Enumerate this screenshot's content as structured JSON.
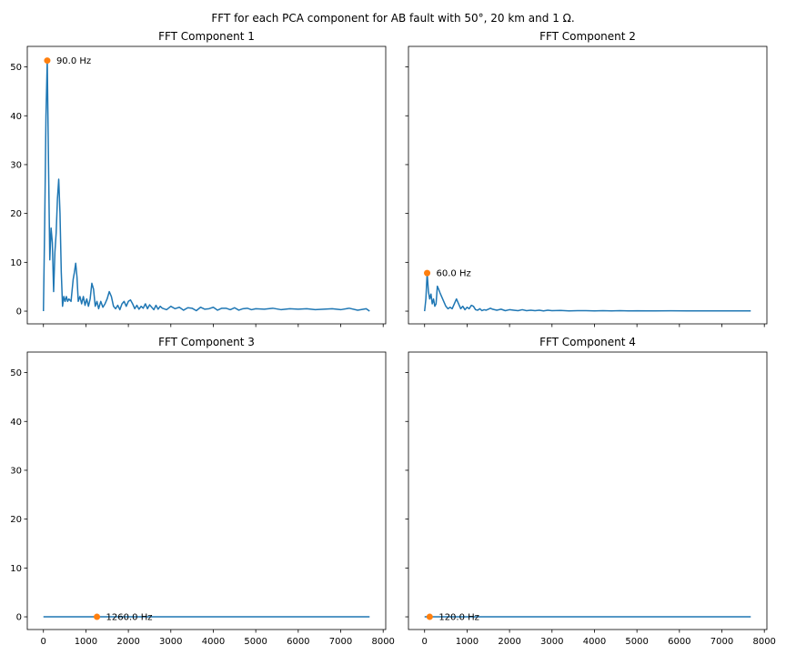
{
  "figure": {
    "suptitle": "FFT for each PCA component for AB fault with 50°, 20 km and 1 Ω."
  },
  "colors": {
    "line": "#1f77b4",
    "peak": "#ff7f0e",
    "axes": "#000000",
    "background": "#ffffff"
  },
  "chart_data": [
    {
      "type": "line",
      "title": "FFT Component 1",
      "xlabel": "",
      "ylabel": "",
      "xlim": [
        -380,
        8060
      ],
      "ylim": [
        -2.6,
        54.2
      ],
      "xticks": [
        0,
        1000,
        2000,
        3000,
        4000,
        5000,
        6000,
        7000,
        8000
      ],
      "yticks": [
        0,
        10,
        20,
        30,
        40,
        50
      ],
      "show_xtick_labels": false,
      "show_ytick_labels": true,
      "grid": false,
      "series": [
        {
          "x": [
            0,
            30,
            60,
            90,
            120,
            150,
            180,
            210,
            240,
            270,
            300,
            330,
            360,
            390,
            420,
            450,
            480,
            510,
            540,
            570,
            600,
            650,
            700,
            730,
            760,
            790,
            820,
            860,
            900,
            940,
            980,
            1020,
            1060,
            1100,
            1140,
            1180,
            1220,
            1260,
            1300,
            1350,
            1400,
            1450,
            1500,
            1550,
            1600,
            1650,
            1700,
            1750,
            1800,
            1850,
            1900,
            1950,
            2000,
            2050,
            2100,
            2150,
            2200,
            2250,
            2300,
            2350,
            2400,
            2450,
            2500,
            2550,
            2600,
            2650,
            2700,
            2750,
            2800,
            2900,
            3000,
            3100,
            3200,
            3300,
            3400,
            3500,
            3600,
            3700,
            3800,
            3900,
            4000,
            4100,
            4200,
            4300,
            4400,
            4500,
            4600,
            4700,
            4800,
            4900,
            5000,
            5200,
            5400,
            5600,
            5800,
            6000,
            6200,
            6400,
            6600,
            6800,
            7000,
            7200,
            7400,
            7600,
            7680
          ],
          "y": [
            0,
            18,
            40,
            51.3,
            30,
            10.5,
            17,
            14,
            4,
            12,
            16,
            23,
            27,
            20,
            8,
            1,
            3,
            2,
            3,
            2,
            2.5,
            2,
            6.5,
            8,
            9.8,
            7,
            2,
            3,
            1.5,
            3,
            1.2,
            2.5,
            1,
            2.5,
            5.7,
            4.5,
            1,
            2,
            0.5,
            2,
            0.8,
            1.5,
            2.5,
            4,
            3,
            1,
            0.5,
            1.2,
            0.3,
            1.5,
            2,
            1,
            2,
            2.3,
            1.5,
            0.5,
            1.2,
            0.4,
            1,
            0.6,
            1.5,
            0.5,
            1.3,
            0.8,
            0.3,
            1.2,
            0.4,
            1.0,
            0.6,
            0.3,
            1.0,
            0.5,
            0.8,
            0.2,
            0.7,
            0.6,
            0.1,
            0.8,
            0.4,
            0.5,
            0.8,
            0.2,
            0.6,
            0.6,
            0.3,
            0.7,
            0.2,
            0.5,
            0.6,
            0.3,
            0.5,
            0.4,
            0.6,
            0.3,
            0.5,
            0.4,
            0.5,
            0.3,
            0.4,
            0.5,
            0.3,
            0.6,
            0.2,
            0.5,
            0
          ]
        }
      ],
      "peak": {
        "x": 90,
        "y": 51.3,
        "label": "90.0 Hz"
      }
    },
    {
      "type": "line",
      "title": "FFT Component 2",
      "xlabel": "",
      "ylabel": "",
      "xlim": [
        -380,
        8060
      ],
      "ylim": [
        -2.6,
        54.2
      ],
      "xticks": [
        0,
        1000,
        2000,
        3000,
        4000,
        5000,
        6000,
        7000,
        8000
      ],
      "yticks": [
        0,
        10,
        20,
        30,
        40,
        50
      ],
      "show_xtick_labels": false,
      "show_ytick_labels": false,
      "grid": false,
      "series": [
        {
          "x": [
            0,
            30,
            60,
            90,
            120,
            150,
            180,
            210,
            240,
            270,
            300,
            330,
            360,
            400,
            450,
            500,
            550,
            600,
            650,
            700,
            750,
            800,
            850,
            900,
            950,
            1000,
            1050,
            1100,
            1150,
            1200,
            1250,
            1300,
            1350,
            1400,
            1450,
            1500,
            1550,
            1600,
            1700,
            1800,
            1900,
            2000,
            2100,
            2200,
            2300,
            2400,
            2500,
            2600,
            2700,
            2800,
            2900,
            3000,
            3200,
            3400,
            3600,
            3800,
            4000,
            4200,
            4400,
            4600,
            4800,
            5000,
            5400,
            5800,
            6200,
            6600,
            7000,
            7400,
            7680
          ],
          "y": [
            0,
            2.5,
            7.8,
            4,
            2.5,
            3.5,
            1.5,
            2.5,
            1,
            1.5,
            5.1,
            4.5,
            3.8,
            3,
            2,
            1,
            0.5,
            0.8,
            0.5,
            1.5,
            2.5,
            1.5,
            0.5,
            1,
            0.3,
            0.8,
            0.5,
            1.2,
            1,
            0.3,
            0.2,
            0.5,
            0.1,
            0.3,
            0.2,
            0.4,
            0.6,
            0.4,
            0.2,
            0.4,
            0.1,
            0.3,
            0.2,
            0.1,
            0.3,
            0.1,
            0.2,
            0.1,
            0.2,
            0.05,
            0.2,
            0.1,
            0.15,
            0.05,
            0.1,
            0.1,
            0.05,
            0.1,
            0.05,
            0.1,
            0.05,
            0.08,
            0.05,
            0.08,
            0.05,
            0.06,
            0.05,
            0.06,
            0.05
          ]
        }
      ],
      "peak": {
        "x": 60,
        "y": 7.8,
        "label": "60.0 Hz"
      }
    },
    {
      "type": "line",
      "title": "FFT Component 3",
      "xlabel": "",
      "ylabel": "",
      "xlim": [
        -380,
        8060
      ],
      "ylim": [
        -2.6,
        54.2
      ],
      "xticks": [
        0,
        1000,
        2000,
        3000,
        4000,
        5000,
        6000,
        7000,
        8000
      ],
      "yticks": [
        0,
        10,
        20,
        30,
        40,
        50
      ],
      "show_xtick_labels": true,
      "show_ytick_labels": true,
      "grid": false,
      "series": [
        {
          "x": [
            0,
            7680
          ],
          "y": [
            0,
            0
          ]
        }
      ],
      "peak": {
        "x": 1260,
        "y": 0,
        "label": "1260.0 Hz"
      }
    },
    {
      "type": "line",
      "title": "FFT Component 4",
      "xlabel": "",
      "ylabel": "",
      "xlim": [
        -380,
        8060
      ],
      "ylim": [
        -2.6,
        54.2
      ],
      "xticks": [
        0,
        1000,
        2000,
        3000,
        4000,
        5000,
        6000,
        7000,
        8000
      ],
      "yticks": [
        0,
        10,
        20,
        30,
        40,
        50
      ],
      "show_xtick_labels": true,
      "show_ytick_labels": false,
      "grid": false,
      "series": [
        {
          "x": [
            0,
            7680
          ],
          "y": [
            0,
            0
          ]
        }
      ],
      "peak": {
        "x": 120,
        "y": 0,
        "label": "120.0 Hz"
      }
    }
  ]
}
